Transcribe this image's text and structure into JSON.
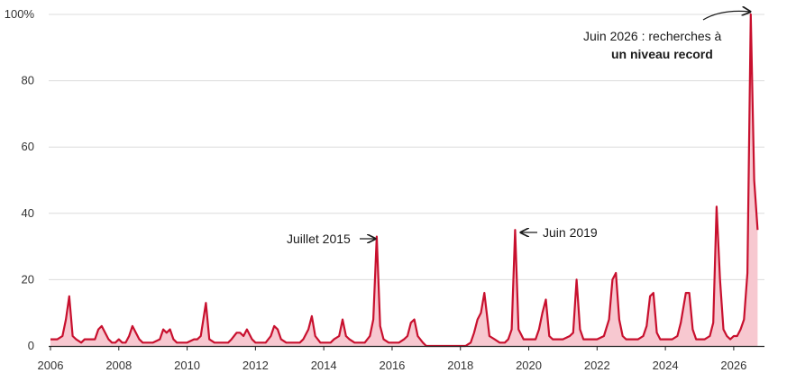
{
  "chart_data": {
    "type": "area",
    "title": "",
    "xlabel": "",
    "ylabel": "",
    "ylim": [
      0,
      100
    ],
    "xlim": [
      2006,
      2026.9
    ],
    "grid": true,
    "legend": "none",
    "y_ticks": [
      0,
      20,
      40,
      60,
      80,
      100
    ],
    "y_tick_labels": [
      "0",
      "20",
      "40",
      "60",
      "80",
      "100%"
    ],
    "x_ticks": [
      2006,
      2008,
      2010,
      2012,
      2014,
      2016,
      2018,
      2020,
      2022,
      2024,
      2026
    ],
    "x_tick_labels": [
      "2006",
      "2008",
      "2010",
      "2012",
      "2014",
      "2016",
      "2018",
      "2020",
      "2022",
      "2024",
      "2026"
    ],
    "line_color": "#c8102e",
    "fill_color": "#f7c8d0",
    "series": [
      {
        "x": [
          2006.0,
          2006.2,
          2006.35,
          2006.45,
          2006.55,
          2006.65,
          2006.75,
          2006.9,
          2007.0,
          2007.15,
          2007.3,
          2007.4,
          2007.5,
          2007.6,
          2007.7,
          2007.8,
          2007.9,
          2008.0,
          2008.1,
          2008.2,
          2008.3,
          2008.4,
          2008.5,
          2008.6,
          2008.7,
          2008.8,
          2009.0,
          2009.2,
          2009.3,
          2009.4,
          2009.5,
          2009.6,
          2009.7,
          2009.8,
          2010.0,
          2010.2,
          2010.3,
          2010.4,
          2010.55,
          2010.65,
          2010.8,
          2011.0,
          2011.2,
          2011.3,
          2011.45,
          2011.55,
          2011.65,
          2011.75,
          2011.9,
          2012.0,
          2012.2,
          2012.3,
          2012.45,
          2012.55,
          2012.65,
          2012.75,
          2012.9,
          2013.0,
          2013.2,
          2013.3,
          2013.4,
          2013.55,
          2013.65,
          2013.75,
          2013.9,
          2014.0,
          2014.2,
          2014.3,
          2014.45,
          2014.55,
          2014.65,
          2014.75,
          2014.9,
          2015.0,
          2015.2,
          2015.35,
          2015.45,
          2015.55,
          2015.65,
          2015.75,
          2015.9,
          2016.0,
          2016.2,
          2016.35,
          2016.45,
          2016.55,
          2016.65,
          2016.75,
          2016.9,
          2017.0,
          2017.5,
          2018.0,
          2018.15,
          2018.3,
          2018.4,
          2018.5,
          2018.6,
          2018.7,
          2018.85,
          2019.0,
          2019.15,
          2019.3,
          2019.4,
          2019.5,
          2019.6,
          2019.7,
          2019.85,
          2020.0,
          2020.2,
          2020.3,
          2020.4,
          2020.5,
          2020.6,
          2020.7,
          2020.85,
          2021.0,
          2021.2,
          2021.3,
          2021.4,
          2021.5,
          2021.6,
          2021.7,
          2021.85,
          2022.0,
          2022.2,
          2022.35,
          2022.45,
          2022.55,
          2022.65,
          2022.75,
          2022.85,
          2023.0,
          2023.2,
          2023.35,
          2023.45,
          2023.55,
          2023.65,
          2023.75,
          2023.85,
          2024.0,
          2024.2,
          2024.35,
          2024.45,
          2024.6,
          2024.7,
          2024.8,
          2024.9,
          2025.0,
          2025.15,
          2025.3,
          2025.4,
          2025.5,
          2025.6,
          2025.7,
          2025.8,
          2025.9,
          2026.0,
          2026.1,
          2026.2,
          2026.3,
          2026.4,
          2026.5,
          2026.6,
          2026.7
        ],
        "values": [
          2,
          2,
          3,
          8,
          15,
          3,
          2,
          1,
          2,
          2,
          2,
          5,
          6,
          4,
          2,
          1,
          1,
          2,
          1,
          1,
          3,
          6,
          4,
          2,
          1,
          1,
          1,
          2,
          5,
          4,
          5,
          2,
          1,
          1,
          1,
          2,
          2,
          3,
          13,
          2,
          1,
          1,
          1,
          2,
          4,
          4,
          3,
          5,
          2,
          1,
          1,
          1,
          3,
          6,
          5,
          2,
          1,
          1,
          1,
          1,
          2,
          5,
          9,
          3,
          1,
          1,
          1,
          2,
          3,
          8,
          3,
          2,
          1,
          1,
          1,
          3,
          8,
          33,
          6,
          2,
          1,
          1,
          1,
          2,
          3,
          7,
          8,
          3,
          1,
          0,
          0,
          0,
          0,
          1,
          4,
          8,
          10,
          16,
          3,
          2,
          1,
          1,
          2,
          5,
          35,
          5,
          2,
          2,
          2,
          5,
          10,
          14,
          3,
          2,
          2,
          2,
          3,
          4,
          20,
          5,
          2,
          2,
          2,
          2,
          3,
          8,
          20,
          22,
          8,
          3,
          2,
          2,
          2,
          3,
          6,
          15,
          16,
          4,
          2,
          2,
          2,
          3,
          7,
          16,
          16,
          5,
          2,
          2,
          2,
          3,
          7,
          42,
          20,
          5,
          3,
          2,
          3,
          3,
          5,
          8,
          22,
          100,
          50,
          35
        ]
      }
    ],
    "annotations": [
      {
        "text": "Juillet 2015",
        "x": 2015.55,
        "y": 32
      },
      {
        "text": "Juin 2019",
        "x": 2019.5,
        "y": 34
      },
      {
        "text": "Juin 2026 : recherches à",
        "x": 2026.5,
        "y": 100
      },
      {
        "text": "un niveau record",
        "x": 2026.5,
        "y": 100,
        "color": "#c8102e"
      }
    ]
  }
}
